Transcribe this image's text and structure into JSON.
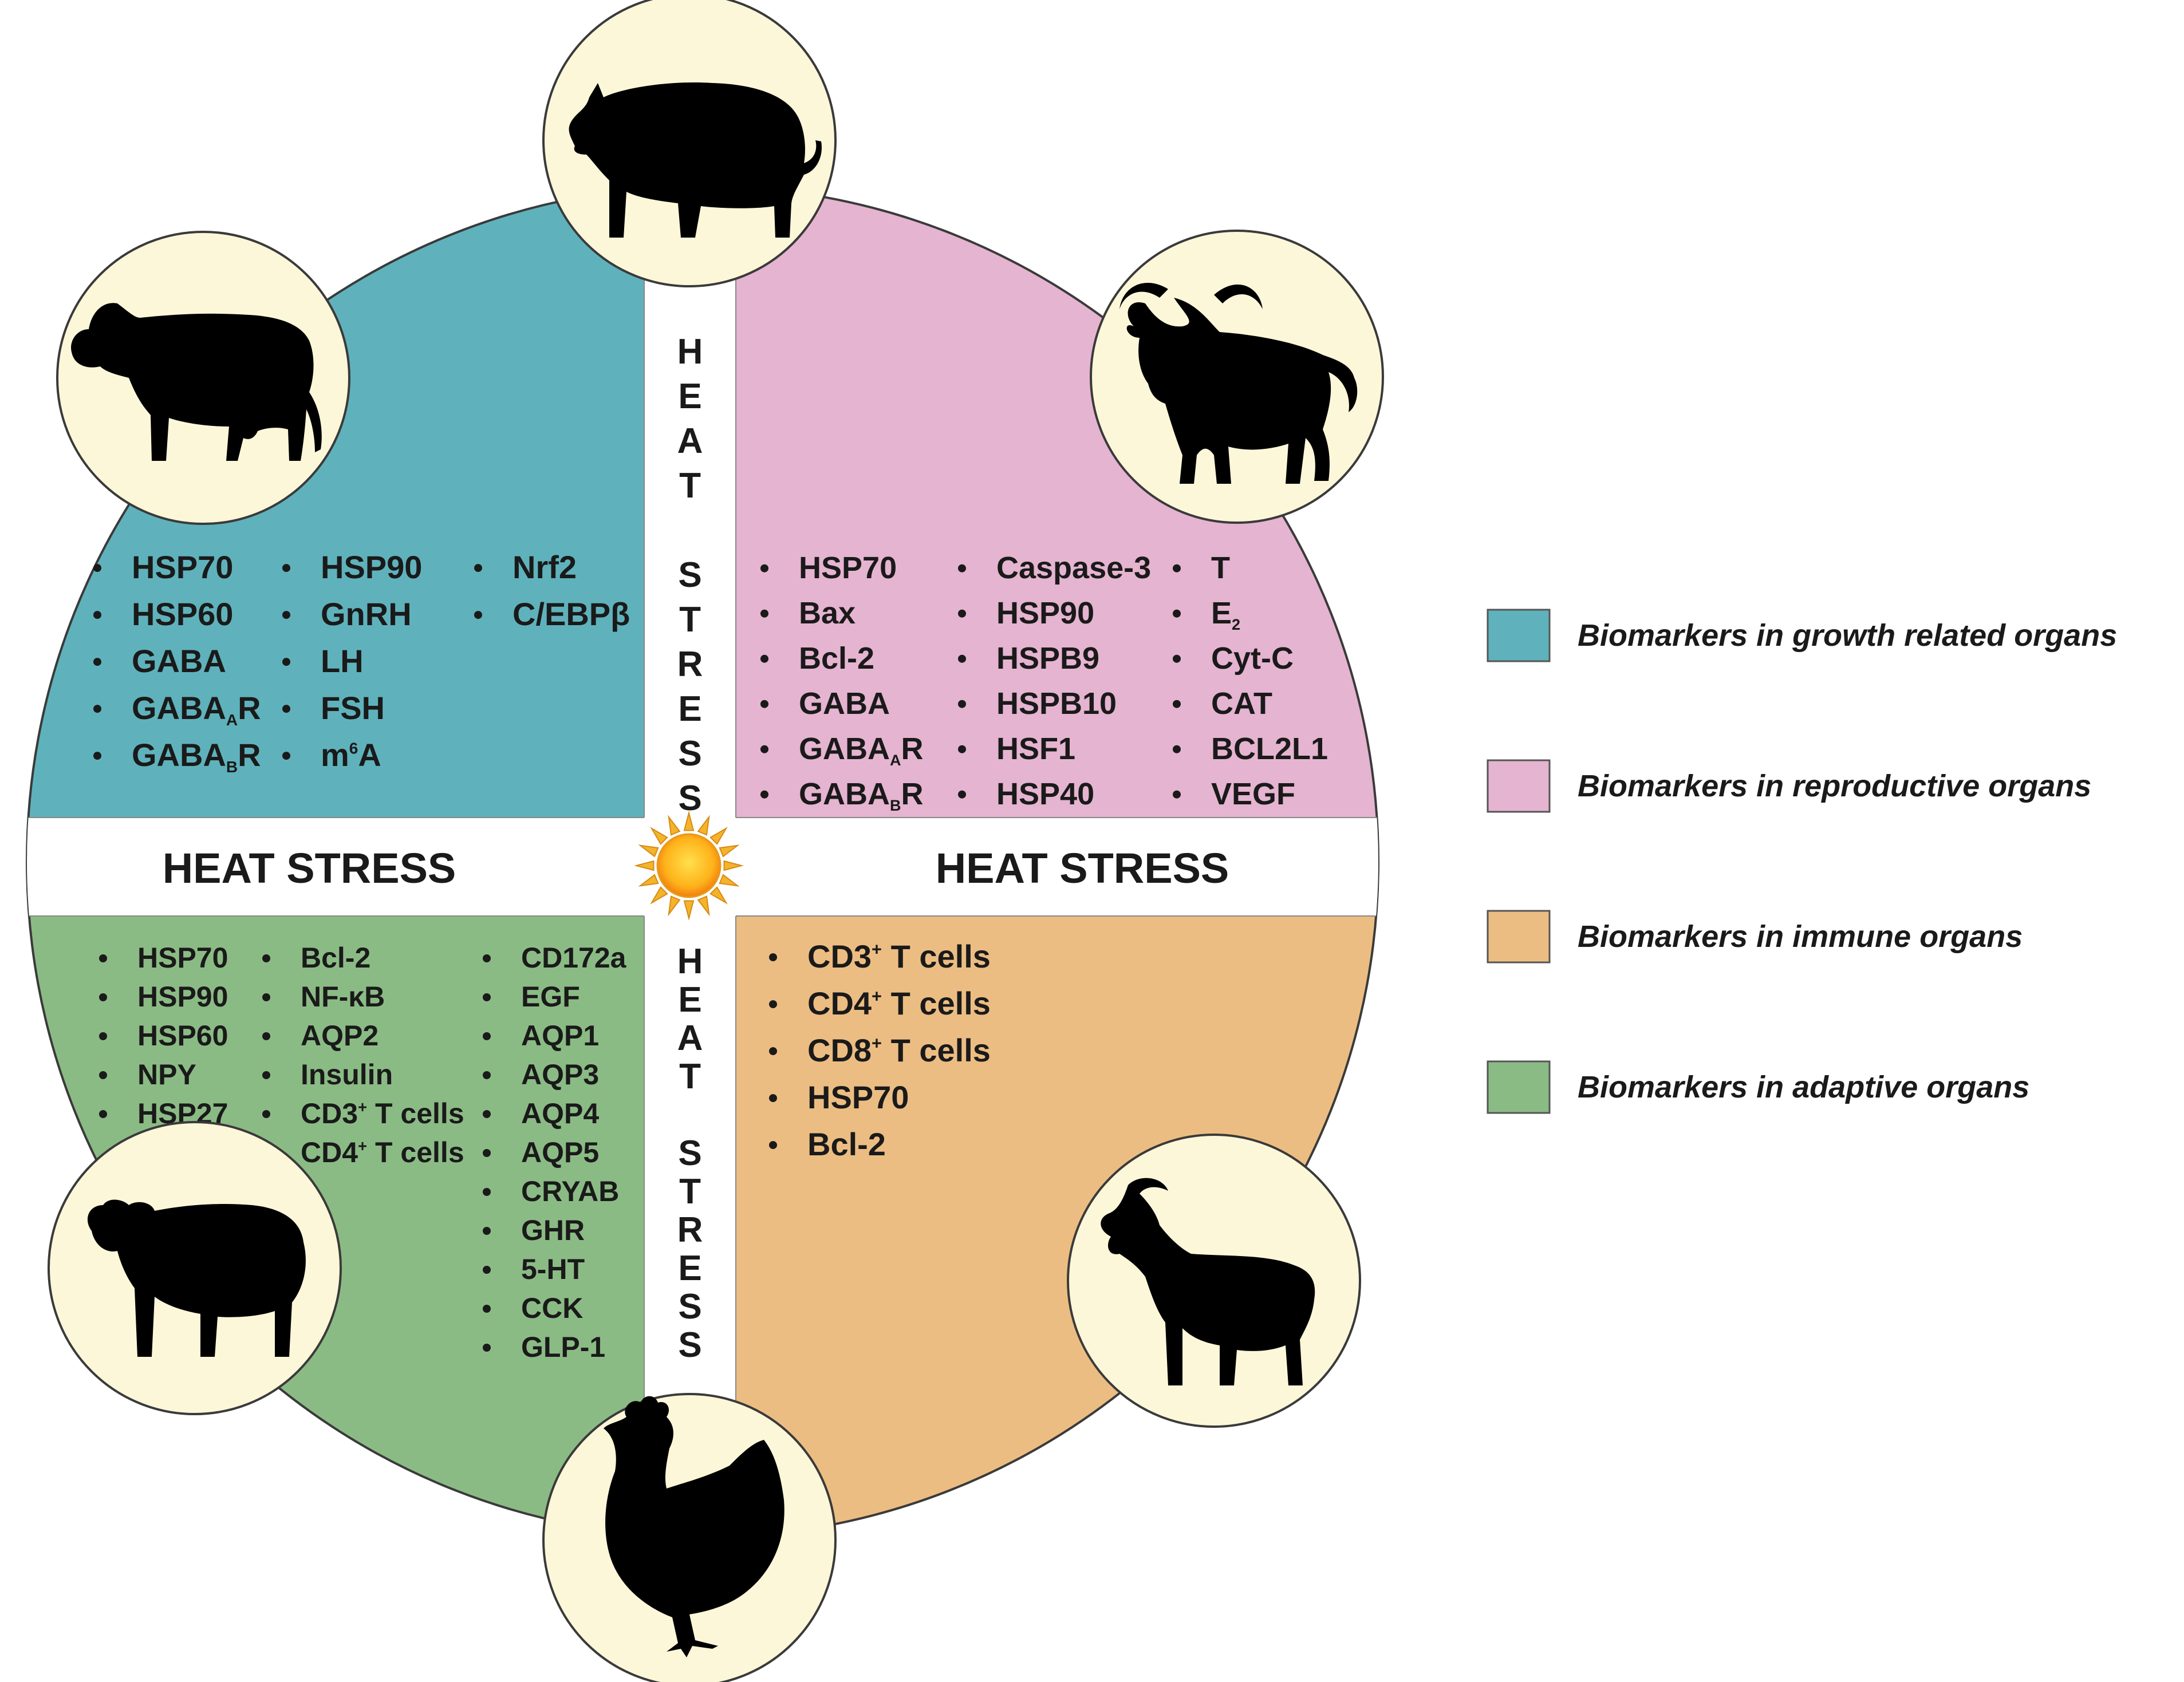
{
  "colors": {
    "growth": "#5fb2bc",
    "reproductive": "#e5b4d0",
    "immune": "#ecbd82",
    "adaptive": "#8bbb85",
    "animal_circle": "#fdf7d9",
    "band": "#ffffff"
  },
  "heat_stress_label": "HEAT STRESS",
  "vertical_labels": {
    "top": [
      "H",
      "E",
      "A",
      "T",
      "",
      "S",
      "T",
      "R",
      "E",
      "S",
      "S"
    ],
    "bottom": [
      "H",
      "E",
      "A",
      "T",
      "",
      "S",
      "T",
      "R",
      "E",
      "S",
      "S"
    ]
  },
  "animals": [
    "pig-icon",
    "buffalo-icon",
    "goat-icon",
    "chicken-icon",
    "sheep-icon",
    "cow-icon"
  ],
  "quadrants": {
    "growth": {
      "columns": [
        [
          "HSP70",
          "HSP60",
          "GABA",
          "GABA_A R",
          "GABA_B R"
        ],
        [
          "HSP90",
          "GnRH",
          "LH",
          "FSH",
          "m6A"
        ],
        [
          "Nrf2",
          "C/EBPβ"
        ]
      ]
    },
    "reproductive": {
      "columns": [
        [
          "HSP70",
          "Bax",
          "Bcl-2",
          "GABA",
          "GABA_A R",
          "GABA_B R"
        ],
        [
          "Caspase-3",
          "HSP90",
          "HSPB9",
          "HSPB10",
          "HSF1",
          "HSP40"
        ],
        [
          "T",
          "E2",
          "Cyt-C",
          "CAT",
          "BCL2L1",
          "VEGF"
        ]
      ]
    },
    "adaptive": {
      "columns": [
        [
          "HSP70",
          "HSP90",
          "HSP60",
          "NPY",
          "HSP27"
        ],
        [
          "Bcl-2",
          "NF-κB",
          "AQP2",
          "Insulin",
          "CD3+ T cells",
          "CD4+ T cells"
        ],
        [
          "CD172a",
          "EGF",
          "AQP1",
          "AQP3",
          "AQP4",
          "AQP5",
          "CRYAB",
          "GHR",
          "5-HT",
          "CCK",
          "GLP-1"
        ]
      ]
    },
    "immune": {
      "columns": [
        [
          "CD3+ T cells",
          "CD4+ T cells",
          "CD8+ T cells",
          "HSP70",
          "Bcl-2"
        ]
      ]
    }
  },
  "legend": [
    {
      "key": "growth",
      "label": "Biomarkers in growth related organs"
    },
    {
      "key": "reproductive",
      "label": "Biomarkers in reproductive organs"
    },
    {
      "key": "immune",
      "label": "Biomarkers in immune organs"
    },
    {
      "key": "adaptive",
      "label": "Biomarkers in adaptive organs"
    }
  ]
}
